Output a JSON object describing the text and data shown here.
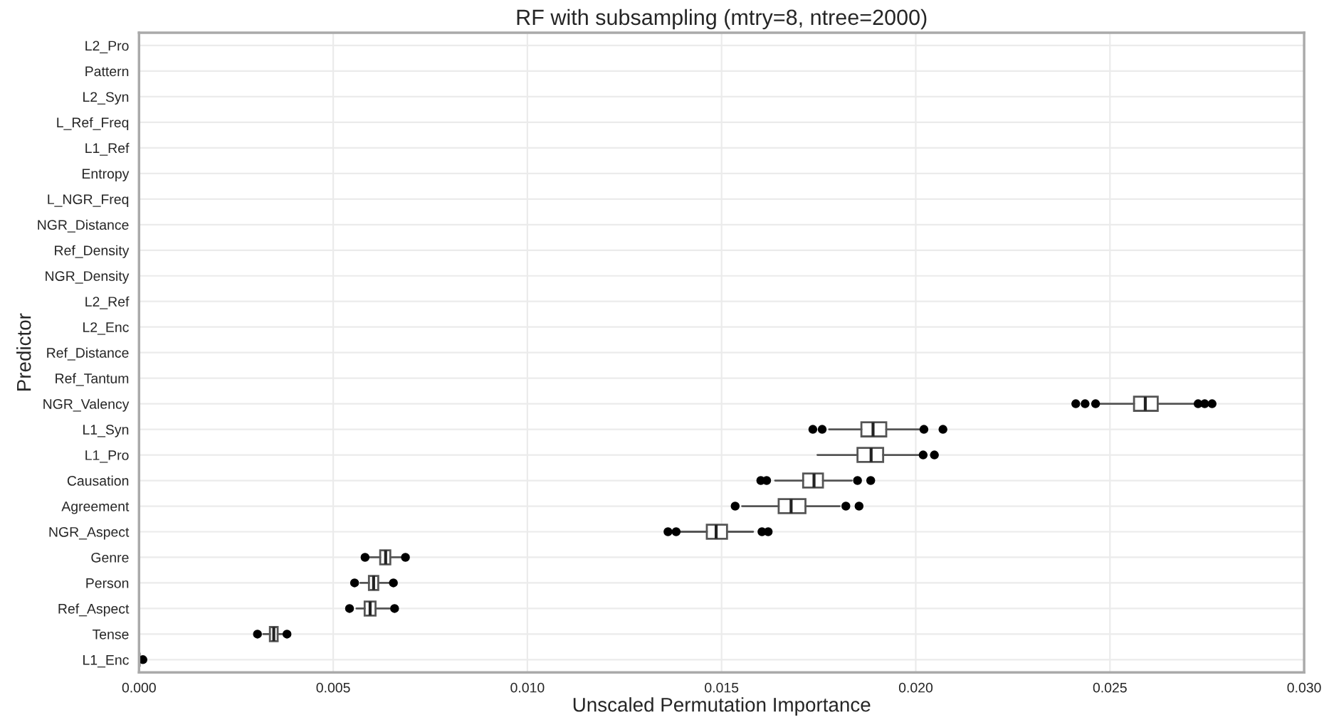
{
  "chart_data": {
    "type": "box",
    "title": "RF with subsampling (mtry=8, ntree=2000)",
    "xlabel": "Unscaled Permutation Importance",
    "ylabel": "Predictor",
    "orientation": "horizontal",
    "categories": [
      "L2_Pro",
      "Pattern",
      "L2_Syn",
      "L_Ref_Freq",
      "L1_Ref",
      "Entropy",
      "L_NGR_Freq",
      "NGR_Distance",
      "Ref_Density",
      "NGR_Density",
      "L2_Ref",
      "L2_Enc",
      "Ref_Distance",
      "Ref_Tantum",
      "NGR_Valency",
      "L1_Syn",
      "L1_Pro",
      "Causation",
      "Agreement",
      "NGR_Aspect",
      "Genre",
      "Person",
      "Ref_Aspect",
      "Tense",
      "L1_Enc"
    ],
    "boxes": [
      null,
      null,
      null,
      null,
      null,
      null,
      null,
      null,
      null,
      null,
      null,
      null,
      null,
      null,
      {
        "low": 0.02469,
        "q1": 0.02562,
        "median": 0.02591,
        "q3": 0.02623,
        "high": 0.02717,
        "outliers": [
          0.02412,
          0.02436,
          0.02463,
          0.02727,
          0.02744,
          0.02763
        ]
      },
      {
        "low": 0.01777,
        "q1": 0.0186,
        "median": 0.0189,
        "q3": 0.01924,
        "high": 0.02014,
        "outliers": [
          0.01735,
          0.01759,
          0.02021,
          0.0207
        ]
      },
      {
        "low": 0.01747,
        "q1": 0.0185,
        "median": 0.01885,
        "q3": 0.01916,
        "high": 0.02008,
        "outliers": [
          0.02019,
          0.02048
        ]
      },
      {
        "low": 0.01638,
        "q1": 0.0171,
        "median": 0.01738,
        "q3": 0.01761,
        "high": 0.01835,
        "outliers": [
          0.01601,
          0.01616,
          0.0185,
          0.01884
        ]
      },
      {
        "low": 0.01553,
        "q1": 0.01647,
        "median": 0.01679,
        "q3": 0.01716,
        "high": 0.01804,
        "outliers": [
          0.01535,
          0.0182,
          0.01854
        ]
      },
      {
        "low": 0.01389,
        "q1": 0.01462,
        "median": 0.01486,
        "q3": 0.01514,
        "high": 0.01581,
        "outliers": [
          0.01362,
          0.01383,
          0.01604,
          0.0162
        ]
      },
      {
        "low": 0.0059,
        "q1": 0.00621,
        "median": 0.00635,
        "q3": 0.00647,
        "high": 0.00675,
        "outliers": [
          0.00582,
          0.00686
        ]
      },
      {
        "low": 0.0057,
        "q1": 0.00592,
        "median": 0.00604,
        "q3": 0.00616,
        "high": 0.00645,
        "outliers": [
          0.00555,
          0.00655
        ]
      },
      {
        "low": 0.0056,
        "q1": 0.00581,
        "median": 0.00595,
        "q3": 0.00609,
        "high": 0.00645,
        "outliers": [
          0.00542,
          0.00658
        ]
      },
      {
        "low": 0.0032,
        "q1": 0.00337,
        "median": 0.00347,
        "q3": 0.00357,
        "high": 0.00372,
        "outliers": [
          0.00305,
          0.00381
        ]
      },
      {
        "low": 0.0,
        "q1": 0.0,
        "median": 0.0,
        "q3": 0.0,
        "high": 0.0,
        "outliers": [
          0.0001
        ]
      }
    ],
    "xlim": [
      0,
      0.03
    ],
    "xticks": [
      {
        "value": 0,
        "label": "0.000"
      },
      {
        "value": 0.005,
        "label": "0.005"
      },
      {
        "value": 0.01,
        "label": "0.010"
      },
      {
        "value": 0.015,
        "label": "0.015"
      },
      {
        "value": 0.02,
        "label": "0.020"
      },
      {
        "value": 0.025,
        "label": "0.025"
      },
      {
        "value": 0.03,
        "label": "0.030"
      }
    ],
    "grid": true
  }
}
